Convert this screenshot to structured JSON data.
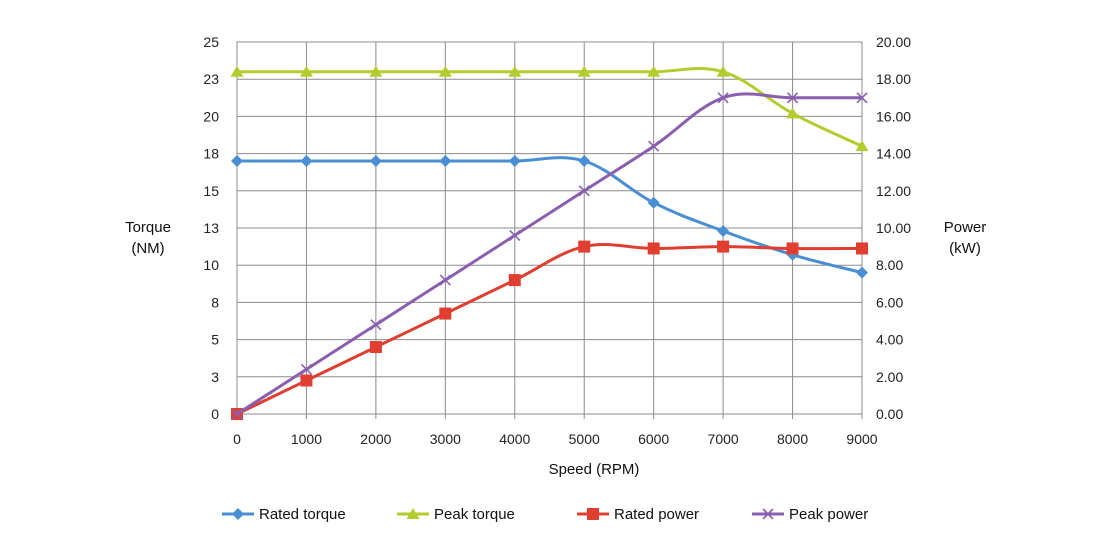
{
  "chart_data": {
    "type": "line",
    "xlabel": "Speed (RPM)",
    "ylabel_left": [
      "Torque",
      "(NM)"
    ],
    "ylabel_right": [
      "Power",
      "(kW)"
    ],
    "x": [
      0,
      1000,
      2000,
      3000,
      4000,
      5000,
      6000,
      7000,
      8000,
      9000
    ],
    "x_ticks": [
      "0",
      "1000",
      "2000",
      "3000",
      "4000",
      "5000",
      "6000",
      "7000",
      "8000",
      "9000"
    ],
    "xlim": [
      0,
      9000
    ],
    "ylim_left": [
      0,
      25
    ],
    "ylim_right": [
      0,
      20
    ],
    "y_left_ticks": [
      "0",
      "3",
      "5",
      "8",
      "10",
      "13",
      "15",
      "18",
      "20",
      "23",
      "25"
    ],
    "y_right_ticks": [
      "0.00",
      "2.00",
      "4.00",
      "6.00",
      "8.00",
      "10.00",
      "12.00",
      "14.00",
      "16.00",
      "18.00",
      "20.00"
    ],
    "grid": true,
    "legend_position": "bottom",
    "series": [
      {
        "name": "Rated torque",
        "axis": "left",
        "color": "#4a8fd4",
        "marker": "diamond",
        "values": [
          17,
          17,
          17,
          17,
          17,
          17,
          14.2,
          12.3,
          10.7,
          9.5
        ]
      },
      {
        "name": "Peak torque",
        "axis": "left",
        "color": "#b5cc2e",
        "marker": "triangle",
        "values": [
          23,
          23,
          23,
          23,
          23,
          23,
          23,
          23,
          20.2,
          18
        ]
      },
      {
        "name": "Rated power",
        "axis": "right",
        "color": "#e03e30",
        "marker": "square",
        "values": [
          0,
          1.8,
          3.6,
          5.4,
          7.2,
          9,
          8.9,
          9,
          8.9,
          8.9
        ]
      },
      {
        "name": "Peak power",
        "axis": "right",
        "color": "#8a5fb0",
        "marker": "cross",
        "values": [
          0,
          2.4,
          4.8,
          7.2,
          9.6,
          12,
          14.4,
          17,
          17,
          17
        ]
      }
    ]
  }
}
